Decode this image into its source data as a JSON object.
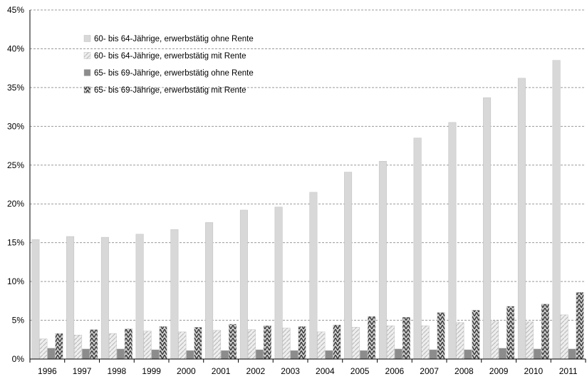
{
  "chart_data": {
    "type": "bar",
    "categories": [
      "1996",
      "1997",
      "1998",
      "1999",
      "2000",
      "2001",
      "2002",
      "2003",
      "2004",
      "2005",
      "2006",
      "2007",
      "2008",
      "2009",
      "2010",
      "2011"
    ],
    "series": [
      {
        "name": "60- bis 64-Jährige, erwerbstätig ohne Rente",
        "fill": "#d8d8d8",
        "values": [
          15.4,
          15.8,
          15.7,
          16.1,
          16.7,
          17.6,
          19.2,
          19.6,
          21.5,
          24.1,
          25.5,
          28.5,
          30.5,
          33.7,
          36.2,
          38.5
        ]
      },
      {
        "name": "60- bis 64-Jährige, erwerbstätig mit Rente",
        "fill": "#e6e6e6",
        "values": [
          2.6,
          3.1,
          3.3,
          3.6,
          3.5,
          3.7,
          3.8,
          4.0,
          3.5,
          4.1,
          4.3,
          4.3,
          4.7,
          4.9,
          4.8,
          5.7
        ]
      },
      {
        "name": "65- bis 69-Jährige, erwerbstätig ohne Rente",
        "fill": "#8c8c8c",
        "values": [
          1.4,
          1.3,
          1.3,
          1.2,
          1.1,
          1.1,
          1.2,
          1.1,
          1.1,
          1.1,
          1.3,
          1.2,
          1.2,
          1.4,
          1.3,
          1.3
        ]
      },
      {
        "name": "65- bis 69-Jährige, erwerbstätig mit Rente",
        "fill": "#a0a0a0",
        "values": [
          3.3,
          3.8,
          3.9,
          4.2,
          4.1,
          4.5,
          4.3,
          4.2,
          4.4,
          5.5,
          5.4,
          6.0,
          6.3,
          6.8,
          7.1,
          8.6
        ]
      }
    ],
    "yticks": [
      "0%",
      "5%",
      "10%",
      "15%",
      "20%",
      "25%",
      "30%",
      "35%",
      "40%",
      "45%"
    ],
    "ylim": [
      0,
      45
    ],
    "grid": true,
    "legend_position": "top-left"
  }
}
